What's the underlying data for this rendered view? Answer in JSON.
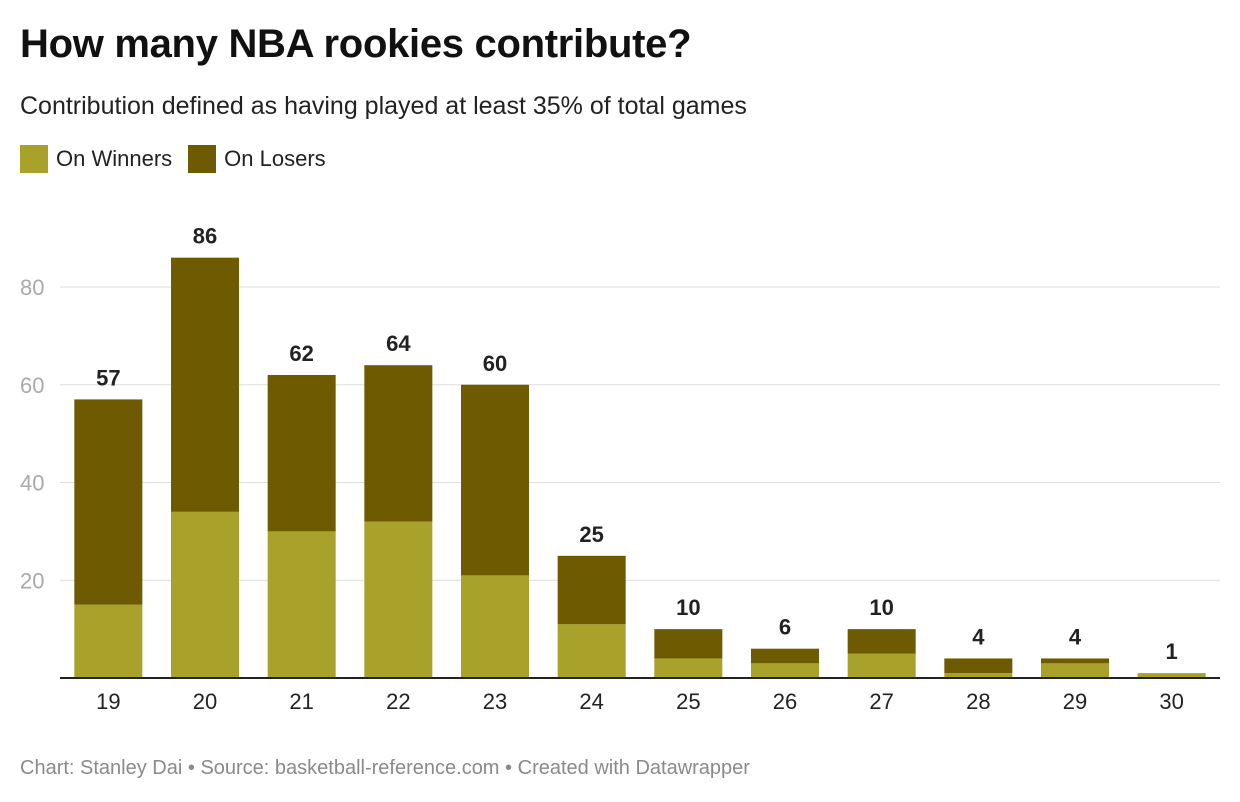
{
  "title": "How many NBA rookies contribute?",
  "subtitle": "Contribution defined as having played at least 35% of total games",
  "legend": [
    {
      "label": "On Winners",
      "color": "#a8a22a"
    },
    {
      "label": "On Losers",
      "color": "#6e5a00"
    }
  ],
  "footer": {
    "credit": "Chart: Stanley Dai",
    "source": "Source: basketball-reference.com",
    "tool": "Created with Datawrapper",
    "separator": "•"
  },
  "chart_data": {
    "type": "bar",
    "stacked": true,
    "title": "How many NBA rookies contribute?",
    "subtitle": "Contribution defined as having played at least 35% of total games",
    "categories": [
      "19",
      "20",
      "21",
      "22",
      "23",
      "24",
      "25",
      "26",
      "27",
      "28",
      "29",
      "30"
    ],
    "series": [
      {
        "name": "On Winners",
        "color": "#a8a22a",
        "values": [
          15,
          34,
          30,
          32,
          21,
          11,
          4,
          3,
          5,
          1,
          3,
          1
        ]
      },
      {
        "name": "On Losers",
        "color": "#6e5a00",
        "values": [
          42,
          52,
          32,
          32,
          39,
          14,
          6,
          3,
          5,
          3,
          1,
          0
        ]
      }
    ],
    "totals": [
      57,
      86,
      62,
      64,
      60,
      25,
      10,
      6,
      10,
      4,
      4,
      1
    ],
    "ylim": [
      0,
      80
    ],
    "yticks": [
      20,
      40,
      60,
      80
    ],
    "grid": true,
    "legend_position": "top-left",
    "xlabel": "",
    "ylabel": ""
  }
}
